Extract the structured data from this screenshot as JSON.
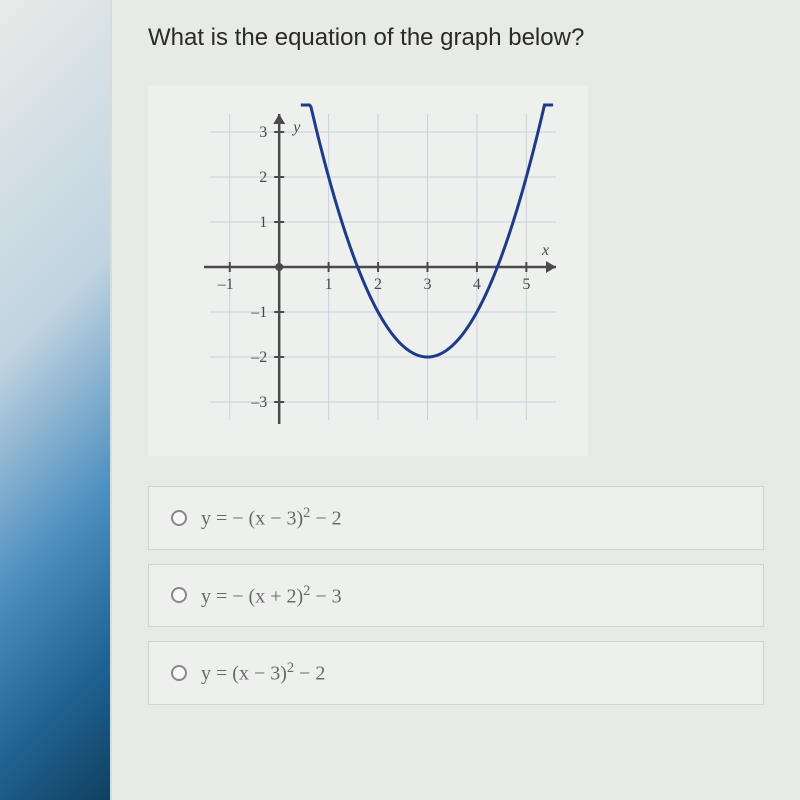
{
  "question": "What is the equation of the graph below?",
  "chart": {
    "type": "line",
    "x_axis_label": "x",
    "y_axis_label": "y",
    "xlim": [
      -1.4,
      5.6
    ],
    "ylim": [
      -3.4,
      3.4
    ],
    "xticks": [
      -1,
      1,
      2,
      3,
      4,
      5
    ],
    "yticks": [
      -3,
      -2,
      -1,
      1,
      2,
      3
    ],
    "grid_color": "#c8d0e0",
    "axis_color": "#4a4a4a",
    "background_color": "#eef0ee",
    "curve_color": "#1e3a8a",
    "curve_width": 3,
    "tick_font_size": 16,
    "axis_label_font_size": 16,
    "equation": "y = (x - 3)^2 - 2",
    "vertex": [
      3,
      -2
    ]
  },
  "options": [
    {
      "html": "y = &minus; (x &minus; 3)<span class='sup'>2</span> &minus; 2"
    },
    {
      "html": "y = &minus; (x + 2)<span class='sup'>2</span> &minus; 3"
    },
    {
      "html": "y = (x &minus; 3)<span class='sup'>2</span> &minus; 2"
    }
  ]
}
